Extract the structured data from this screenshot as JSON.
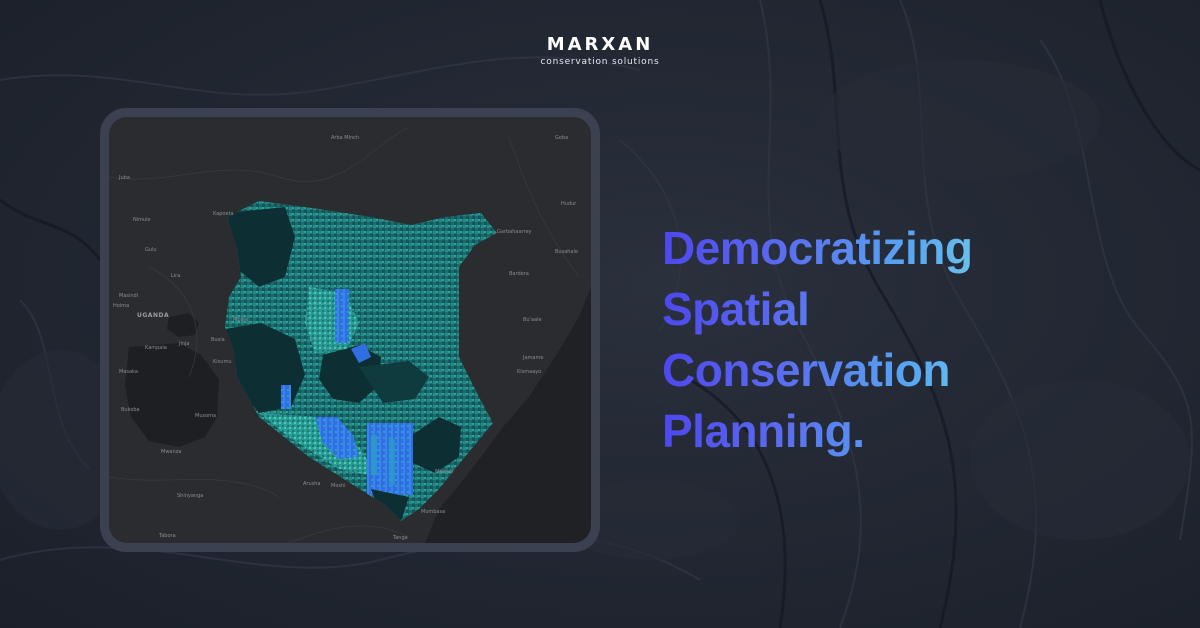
{
  "brand": {
    "name": "MARXAN",
    "tagline": "conservation solutions"
  },
  "headline": {
    "lines": [
      "Democratizing",
      "Spatial",
      "Conservation",
      "Planning."
    ]
  },
  "map": {
    "places": [
      "Arba Minch",
      "Goba",
      "Hudur",
      "Juba",
      "Kapoeta",
      "Nimule",
      "Garbahaarrey",
      "Gulu",
      "Lira",
      "Busahale",
      "Masindi",
      "Hoima",
      "Bardera",
      "UGANDA",
      "Mbale",
      "Bu'aale",
      "Kampala",
      "Jinja",
      "Busia",
      "Jamame",
      "Masaka",
      "Kisumu",
      "Kismaayo",
      "Bukoba",
      "Musoma",
      "Mwanza",
      "Malindi",
      "Shinyanga",
      "Arusha",
      "Moshi",
      "Mombasa",
      "Tabora",
      "Tanga"
    ]
  },
  "colors": {
    "background": "#1e2430",
    "frame": "#3b4150",
    "map_land": "#2b2c2f",
    "lake": "#1d1f22",
    "region_teal": "#1f7a78",
    "region_dark": "#0d2f33",
    "highlight_blue": "#2f6fe0",
    "headline_start": "#4d46ee",
    "headline_end": "#8eecd8"
  }
}
